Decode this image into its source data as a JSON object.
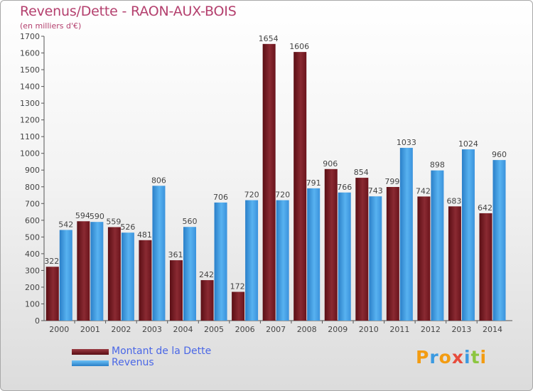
{
  "title": "Revenus/Dette - RAON-AUX-BOIS",
  "subtitle": "(en milliers d'€)",
  "colors": {
    "title": "#b4406e",
    "debt": "#7a1c24",
    "revenue": "#3f9ee6",
    "legend_text": "#4a67e6"
  },
  "logo": {
    "letters": [
      "P",
      "r",
      "o",
      "x",
      "i",
      "t",
      "i"
    ],
    "colors": [
      "#f39c12",
      "#3b9ae1",
      "#f39c12",
      "#e74c3c",
      "#3b9ae1",
      "#8cc63f",
      "#f39c12"
    ]
  },
  "chart_data": {
    "type": "bar",
    "title": "Revenus/Dette - RAON-AUX-BOIS",
    "subtitle": "(en milliers d'€)",
    "xlabel": "",
    "ylabel": "",
    "ylim": [
      0,
      1700
    ],
    "yticks": [
      0,
      100,
      200,
      300,
      400,
      500,
      600,
      700,
      800,
      900,
      1000,
      1100,
      1200,
      1300,
      1400,
      1500,
      1600,
      1700
    ],
    "grid": false,
    "legend_position": "bottom-left",
    "categories": [
      "2000",
      "2001",
      "2002",
      "2003",
      "2004",
      "2005",
      "2006",
      "2007",
      "2008",
      "2009",
      "2010",
      "2011",
      "2012",
      "2013",
      "2014"
    ],
    "series": [
      {
        "name": "Montant de la Dette",
        "color": "#7a1c24",
        "values": [
          322,
          594,
          559,
          481,
          361,
          242,
          172,
          1654,
          1606,
          906,
          854,
          799,
          742,
          683,
          642
        ]
      },
      {
        "name": "Revenus",
        "color": "#3f9ee6",
        "values": [
          542,
          590,
          526,
          806,
          560,
          706,
          720,
          720,
          791,
          766,
          743,
          1033,
          898,
          1024,
          960
        ]
      }
    ]
  }
}
